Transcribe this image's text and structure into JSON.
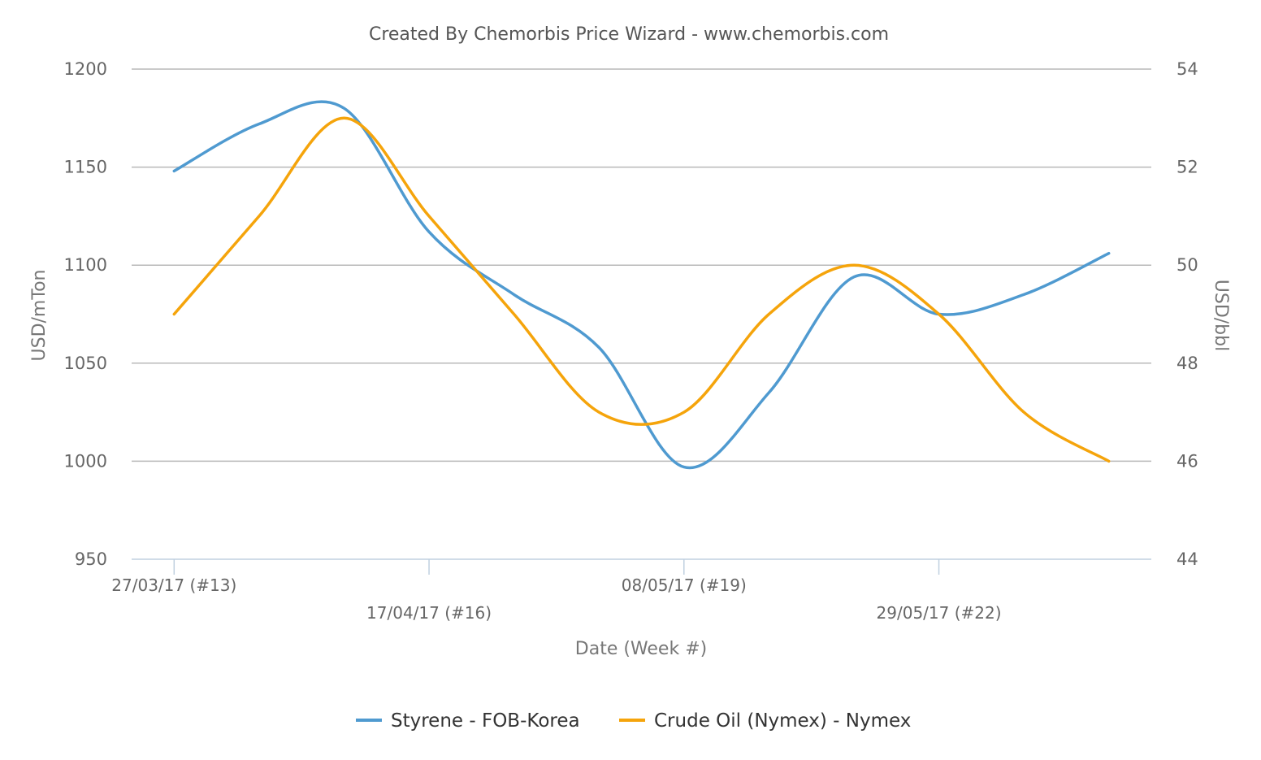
{
  "chart_data": {
    "type": "line",
    "title": "Created By Chemorbis Price Wizard - www.chemorbis.com",
    "xlabel": "Date (Week #)",
    "ylabel_left": "USD/mTon",
    "ylabel_right": "USD/bbl",
    "ylim_left": [
      950,
      1200
    ],
    "ylim_right": [
      44,
      54
    ],
    "yticks_left": [
      "1200",
      "1150",
      "1100",
      "1050",
      "1000",
      "950"
    ],
    "yticks_right": [
      "54",
      "52",
      "50",
      "48",
      "46",
      "44"
    ],
    "xlim_weeks": [
      12.5,
      24.5
    ],
    "x_weeks": [
      13,
      14,
      15,
      16,
      17,
      18,
      19,
      20,
      21,
      22,
      23,
      24
    ],
    "x_tick_labels": [
      {
        "week": 13,
        "label": "27/03/17 (#13)"
      },
      {
        "week": 16,
        "label": "17/04/17 (#16)"
      },
      {
        "week": 19,
        "label": "08/05/17 (#19)"
      },
      {
        "week": 22,
        "label": "29/05/17 (#22)"
      }
    ],
    "series": [
      {
        "name": "Styrene - FOB-Korea",
        "axis": "left",
        "color": "#4f9ad0",
        "values": [
          1148,
          1172,
          1180,
          1117,
          1085,
          1058,
          997,
          1035,
          1094,
          1075,
          1085,
          1106
        ]
      },
      {
        "name": "Crude Oil (Nymex) - Nymex",
        "axis": "right",
        "color": "#f5a40b",
        "values": [
          49.0,
          51.0,
          53.0,
          51.0,
          49.0,
          47.0,
          47.0,
          49.0,
          50.0,
          49.0,
          47.0,
          46.0
        ]
      }
    ],
    "grid": true,
    "legend_position": "bottom-center"
  }
}
